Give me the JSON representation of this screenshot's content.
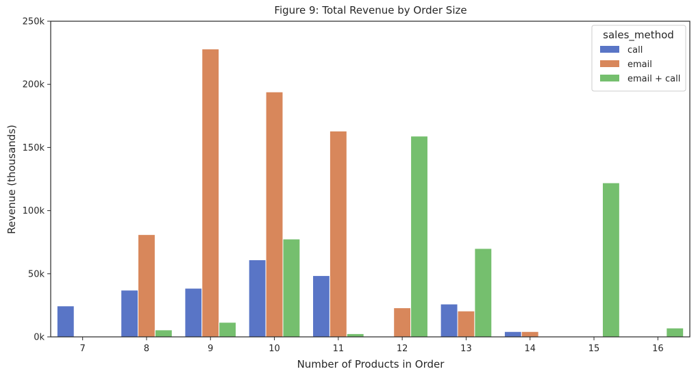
{
  "chart_data": {
    "type": "bar",
    "title": "Figure 9: Total Revenue by Order Size",
    "xlabel": "Number of Products in Order",
    "ylabel": "Revenue (thousands)",
    "categories": [
      "7",
      "8",
      "9",
      "10",
      "11",
      "12",
      "13",
      "14",
      "15",
      "16"
    ],
    "ylim": [
      0,
      250000
    ],
    "yticks": [
      0,
      50000,
      100000,
      150000,
      200000,
      250000
    ],
    "ytick_labels": [
      "0k",
      "50k",
      "100k",
      "150k",
      "200k",
      "250k"
    ],
    "grid": false,
    "legend": {
      "title": "sales_method",
      "placement": "top-right"
    },
    "series": [
      {
        "name": "call",
        "color": "#5975c6",
        "values": [
          24500,
          37000,
          38500,
          61000,
          48500,
          0,
          26000,
          4200,
          0,
          0
        ]
      },
      {
        "name": "email",
        "color": "#d8875b",
        "values": [
          0,
          81000,
          228000,
          194000,
          163000,
          23000,
          20500,
          4200,
          0,
          0
        ]
      },
      {
        "name": "email + call",
        "color": "#75bf6e",
        "values": [
          0,
          5500,
          11500,
          77500,
          2500,
          159000,
          70000,
          0,
          122000,
          7000
        ]
      }
    ]
  }
}
